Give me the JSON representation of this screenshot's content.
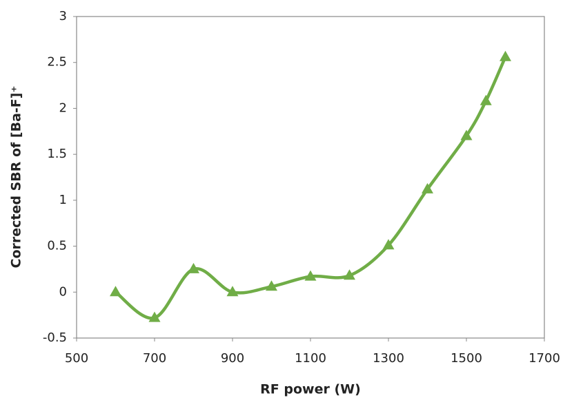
{
  "chart_data": {
    "type": "line",
    "xlabel": "RF power (W)",
    "ylabel": "Corrected SBR of [Ba-F]⁺",
    "x": [
      600,
      700,
      800,
      900,
      1000,
      1100,
      1200,
      1300,
      1400,
      1500,
      1550,
      1600
    ],
    "series": [
      {
        "color": "#70ad47",
        "values": [
          0,
          -0.28,
          0.25,
          0,
          0.06,
          0.17,
          0.18,
          0.51,
          1.12,
          1.7,
          2.08,
          2.56
        ]
      }
    ],
    "xlim": [
      500,
      1700
    ],
    "xticks": [
      500,
      700,
      900,
      1100,
      1300,
      1500,
      1700
    ],
    "ylim": [
      -0.5,
      3
    ],
    "yticks": [
      -0.5,
      0,
      0.5,
      1,
      1.5,
      2,
      2.5,
      3
    ],
    "smooth": true,
    "marker": "triangle"
  }
}
